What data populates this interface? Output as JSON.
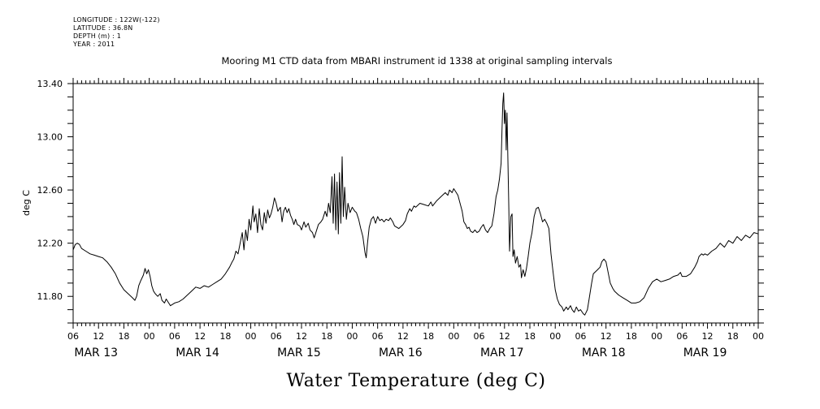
{
  "metadata": {
    "longitude": "LONGITUDE : 122W(-122)",
    "latitude": "LATITUDE : 36.8N",
    "depth": "DEPTH (m) : 1",
    "year": "YEAR : 2011"
  },
  "chart_data": {
    "type": "line",
    "title": "Mooring M1 CTD data from MBARI instrument id 1338 at original sampling intervals",
    "xlabel": "Water Temperature (deg C)",
    "ylabel": "deg C",
    "ylim": [
      11.6,
      13.4
    ],
    "yticks": [
      11.8,
      12.2,
      12.6,
      13.0,
      13.4
    ],
    "ytick_labels": [
      "11.80",
      "12.20",
      "12.60",
      "13.00",
      "13.40"
    ],
    "xlim_hours": [
      0,
      162
    ],
    "xtick_hour_labels": [
      "06",
      "12",
      "18",
      "00",
      "06",
      "12",
      "18",
      "00",
      "06",
      "12",
      "18",
      "00",
      "06",
      "12",
      "18",
      "00",
      "06",
      "12",
      "18",
      "00",
      "06",
      "12",
      "18",
      "00",
      "06",
      "12",
      "18",
      "00"
    ],
    "day_labels": [
      "MAR 13",
      "MAR 14",
      "MAR 15",
      "MAR 16",
      "MAR 17",
      "MAR 18",
      "MAR 19"
    ],
    "series": [
      {
        "values": [
          [
            0,
            12.15
          ],
          [
            0.5,
            12.19
          ],
          [
            1,
            12.2
          ],
          [
            1.5,
            12.19
          ],
          [
            2,
            12.16
          ],
          [
            3,
            12.14
          ],
          [
            4,
            12.12
          ],
          [
            5,
            12.11
          ],
          [
            6,
            12.1
          ],
          [
            7,
            12.09
          ],
          [
            8,
            12.06
          ],
          [
            9,
            12.02
          ],
          [
            10,
            11.97
          ],
          [
            11,
            11.9
          ],
          [
            12,
            11.85
          ],
          [
            13,
            11.82
          ],
          [
            14,
            11.79
          ],
          [
            14.6,
            11.77
          ],
          [
            15,
            11.8
          ],
          [
            15.5,
            11.88
          ],
          [
            16,
            11.92
          ],
          [
            16.6,
            11.96
          ],
          [
            17,
            12.01
          ],
          [
            17.4,
            11.97
          ],
          [
            17.8,
            12.0
          ],
          [
            18.2,
            11.95
          ],
          [
            18.6,
            11.88
          ],
          [
            19,
            11.84
          ],
          [
            19.4,
            11.82
          ],
          [
            20,
            11.8
          ],
          [
            20.6,
            11.82
          ],
          [
            21,
            11.77
          ],
          [
            21.6,
            11.75
          ],
          [
            22,
            11.78
          ],
          [
            22.6,
            11.75
          ],
          [
            23,
            11.73
          ],
          [
            24,
            11.75
          ],
          [
            25,
            11.76
          ],
          [
            26,
            11.78
          ],
          [
            27,
            11.81
          ],
          [
            28,
            11.84
          ],
          [
            29,
            11.87
          ],
          [
            30,
            11.86
          ],
          [
            31,
            11.88
          ],
          [
            32,
            11.87
          ],
          [
            33,
            11.89
          ],
          [
            34,
            11.91
          ],
          [
            35,
            11.93
          ],
          [
            36,
            11.97
          ],
          [
            37,
            12.02
          ],
          [
            37.6,
            12.06
          ],
          [
            38,
            12.08
          ],
          [
            38.5,
            12.14
          ],
          [
            39,
            12.12
          ],
          [
            39.5,
            12.2
          ],
          [
            40,
            12.28
          ],
          [
            40.4,
            12.15
          ],
          [
            40.8,
            12.3
          ],
          [
            41.2,
            12.22
          ],
          [
            41.6,
            12.38
          ],
          [
            42,
            12.3
          ],
          [
            42.5,
            12.48
          ],
          [
            42.8,
            12.36
          ],
          [
            43.2,
            12.42
          ],
          [
            43.6,
            12.28
          ],
          [
            44,
            12.46
          ],
          [
            44.4,
            12.34
          ],
          [
            44.8,
            12.3
          ],
          [
            45.2,
            12.43
          ],
          [
            45.6,
            12.35
          ],
          [
            46,
            12.45
          ],
          [
            46.4,
            12.39
          ],
          [
            46.8,
            12.42
          ],
          [
            47.2,
            12.47
          ],
          [
            47.6,
            12.54
          ],
          [
            48,
            12.5
          ],
          [
            48.4,
            12.44
          ],
          [
            49,
            12.47
          ],
          [
            49.4,
            12.36
          ],
          [
            49.8,
            12.44
          ],
          [
            50.2,
            12.47
          ],
          [
            50.6,
            12.43
          ],
          [
            51,
            12.46
          ],
          [
            51.4,
            12.41
          ],
          [
            51.8,
            12.38
          ],
          [
            52.2,
            12.34
          ],
          [
            52.6,
            12.38
          ],
          [
            53,
            12.34
          ],
          [
            53.6,
            12.33
          ],
          [
            54,
            12.3
          ],
          [
            54.6,
            12.36
          ],
          [
            55,
            12.32
          ],
          [
            55.6,
            12.35
          ],
          [
            56,
            12.3
          ],
          [
            56.6,
            12.28
          ],
          [
            57,
            12.24
          ],
          [
            57.6,
            12.3
          ],
          [
            58,
            12.34
          ],
          [
            58.6,
            12.36
          ],
          [
            59,
            12.38
          ],
          [
            59.6,
            12.44
          ],
          [
            60,
            12.4
          ],
          [
            60.4,
            12.5
          ],
          [
            60.8,
            12.43
          ],
          [
            61.2,
            12.7
          ],
          [
            61.5,
            12.35
          ],
          [
            61.8,
            12.72
          ],
          [
            62.1,
            12.3
          ],
          [
            62.4,
            12.66
          ],
          [
            62.7,
            12.27
          ],
          [
            63,
            12.73
          ],
          [
            63.3,
            12.35
          ],
          [
            63.6,
            12.85
          ],
          [
            63.9,
            12.4
          ],
          [
            64.2,
            12.62
          ],
          [
            64.6,
            12.38
          ],
          [
            65,
            12.5
          ],
          [
            65.5,
            12.43
          ],
          [
            66,
            12.47
          ],
          [
            66.6,
            12.44
          ],
          [
            67,
            12.43
          ],
          [
            67.5,
            12.38
          ],
          [
            68,
            12.31
          ],
          [
            68.5,
            12.25
          ],
          [
            69,
            12.13
          ],
          [
            69.3,
            12.09
          ],
          [
            69.6,
            12.2
          ],
          [
            70,
            12.32
          ],
          [
            70.5,
            12.38
          ],
          [
            71,
            12.4
          ],
          [
            71.5,
            12.35
          ],
          [
            72,
            12.4
          ],
          [
            72.5,
            12.37
          ],
          [
            73,
            12.38
          ],
          [
            73.5,
            12.36
          ],
          [
            74,
            12.38
          ],
          [
            74.6,
            12.37
          ],
          [
            75,
            12.39
          ],
          [
            75.6,
            12.36
          ],
          [
            76,
            12.33
          ],
          [
            77,
            12.31
          ],
          [
            78,
            12.34
          ],
          [
            78.6,
            12.37
          ],
          [
            79,
            12.42
          ],
          [
            79.6,
            12.46
          ],
          [
            80,
            12.44
          ],
          [
            80.6,
            12.48
          ],
          [
            81,
            12.47
          ],
          [
            82,
            12.5
          ],
          [
            83,
            12.49
          ],
          [
            84,
            12.48
          ],
          [
            84.6,
            12.51
          ],
          [
            85,
            12.48
          ],
          [
            86,
            12.52
          ],
          [
            87,
            12.55
          ],
          [
            88,
            12.58
          ],
          [
            88.6,
            12.56
          ],
          [
            89,
            12.6
          ],
          [
            89.6,
            12.58
          ],
          [
            90,
            12.61
          ],
          [
            90.6,
            12.58
          ],
          [
            91,
            12.56
          ],
          [
            91.5,
            12.5
          ],
          [
            92,
            12.44
          ],
          [
            92.4,
            12.36
          ],
          [
            92.8,
            12.34
          ],
          [
            93.2,
            12.31
          ],
          [
            93.6,
            12.32
          ],
          [
            94,
            12.29
          ],
          [
            94.5,
            12.28
          ],
          [
            95,
            12.3
          ],
          [
            95.5,
            12.28
          ],
          [
            96,
            12.29
          ],
          [
            96.5,
            12.32
          ],
          [
            97,
            12.34
          ],
          [
            97.5,
            12.3
          ],
          [
            98,
            12.28
          ],
          [
            98.5,
            12.31
          ],
          [
            99,
            12.33
          ],
          [
            99.5,
            12.42
          ],
          [
            100,
            12.55
          ],
          [
            100.4,
            12.6
          ],
          [
            100.8,
            12.68
          ],
          [
            101.2,
            12.8
          ],
          [
            101.4,
            13.05
          ],
          [
            101.6,
            13.25
          ],
          [
            101.8,
            13.33
          ],
          [
            102,
            13.1
          ],
          [
            102.2,
            13.2
          ],
          [
            102.4,
            12.9
          ],
          [
            102.6,
            13.18
          ],
          [
            102.8,
            12.85
          ],
          [
            103,
            12.5
          ],
          [
            103.2,
            12.14
          ],
          [
            103.5,
            12.4
          ],
          [
            103.8,
            12.42
          ],
          [
            104,
            12.1
          ],
          [
            104.3,
            12.15
          ],
          [
            104.6,
            12.05
          ],
          [
            105,
            12.1
          ],
          [
            105.4,
            12.02
          ],
          [
            105.8,
            12.04
          ],
          [
            106,
            11.94
          ],
          [
            106.4,
            12.0
          ],
          [
            106.8,
            11.95
          ],
          [
            107.2,
            12.01
          ],
          [
            107.6,
            12.1
          ],
          [
            108,
            12.2
          ],
          [
            108.5,
            12.28
          ],
          [
            109,
            12.4
          ],
          [
            109.5,
            12.46
          ],
          [
            110,
            12.47
          ],
          [
            110.5,
            12.42
          ],
          [
            111,
            12.36
          ],
          [
            111.5,
            12.38
          ],
          [
            112,
            12.35
          ],
          [
            112.5,
            12.31
          ],
          [
            113,
            12.12
          ],
          [
            113.5,
            11.98
          ],
          [
            114,
            11.85
          ],
          [
            114.5,
            11.78
          ],
          [
            115,
            11.74
          ],
          [
            115.6,
            11.72
          ],
          [
            116,
            11.69
          ],
          [
            116.6,
            11.72
          ],
          [
            117,
            11.7
          ],
          [
            117.6,
            11.73
          ],
          [
            118,
            11.7
          ],
          [
            118.5,
            11.68
          ],
          [
            119,
            11.72
          ],
          [
            119.5,
            11.69
          ],
          [
            120,
            11.7
          ],
          [
            120.6,
            11.67
          ],
          [
            121,
            11.66
          ],
          [
            121.6,
            11.7
          ],
          [
            122,
            11.78
          ],
          [
            122.6,
            11.9
          ],
          [
            123,
            11.97
          ],
          [
            124,
            12.0
          ],
          [
            124.6,
            12.02
          ],
          [
            125,
            12.06
          ],
          [
            125.5,
            12.08
          ],
          [
            126,
            12.06
          ],
          [
            126.5,
            11.98
          ],
          [
            127,
            11.9
          ],
          [
            127.6,
            11.86
          ],
          [
            128,
            11.84
          ],
          [
            129,
            11.81
          ],
          [
            130,
            11.79
          ],
          [
            131,
            11.77
          ],
          [
            132,
            11.75
          ],
          [
            133,
            11.75
          ],
          [
            134,
            11.76
          ],
          [
            135,
            11.79
          ],
          [
            136,
            11.86
          ],
          [
            137,
            11.91
          ],
          [
            138,
            11.93
          ],
          [
            139,
            11.91
          ],
          [
            140,
            11.92
          ],
          [
            141,
            11.93
          ],
          [
            142,
            11.95
          ],
          [
            143,
            11.96
          ],
          [
            143.6,
            11.98
          ],
          [
            144,
            11.95
          ],
          [
            145,
            11.95
          ],
          [
            146,
            11.97
          ],
          [
            147,
            12.02
          ],
          [
            147.6,
            12.06
          ],
          [
            148,
            12.1
          ],
          [
            148.6,
            12.12
          ],
          [
            149,
            12.11
          ],
          [
            149.4,
            12.12
          ],
          [
            150,
            12.11
          ],
          [
            151,
            12.14
          ],
          [
            152,
            12.16
          ],
          [
            153,
            12.2
          ],
          [
            154,
            12.17
          ],
          [
            155,
            12.22
          ],
          [
            156,
            12.2
          ],
          [
            157,
            12.25
          ],
          [
            158,
            12.22
          ],
          [
            159,
            12.26
          ],
          [
            160,
            12.24
          ],
          [
            161,
            12.28
          ],
          [
            162,
            12.27
          ]
        ]
      }
    ]
  }
}
